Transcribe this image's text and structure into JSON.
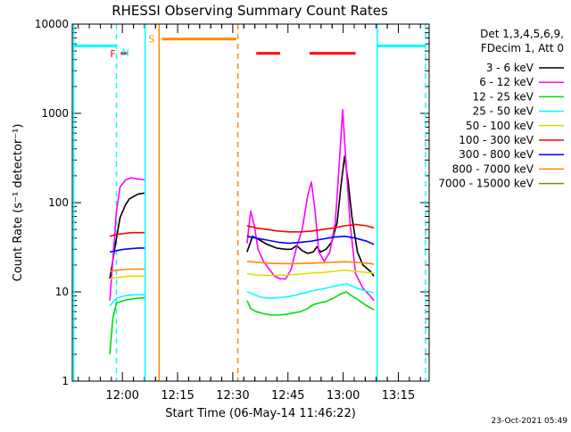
{
  "chart_data": {
    "type": "line",
    "title": "RHESSI Observing Summary Count Rates",
    "xlabel": "Start Time (06-May-14 11:46:22)",
    "ylabel": "Count Rate (s⁻¹ detector⁻¹)",
    "y_scale": "log",
    "ylim": [
      1,
      10000
    ],
    "xlim_minutes_after_start": [
      0,
      97
    ],
    "x_ticks": [
      {
        "label": "12:00",
        "min": 13.63
      },
      {
        "label": "12:15",
        "min": 28.63
      },
      {
        "label": "12:30",
        "min": 43.63
      },
      {
        "label": "12:45",
        "min": 58.63
      },
      {
        "label": "13:00",
        "min": 73.63
      },
      {
        "label": "13:15",
        "min": 88.63
      }
    ],
    "y_ticks": [
      {
        "label": "1",
        "v": 1
      },
      {
        "label": "10",
        "v": 10
      },
      {
        "label": "100",
        "v": 100
      },
      {
        "label": "1000",
        "v": 1000
      },
      {
        "label": "10000",
        "v": 10000
      }
    ],
    "legend": {
      "placement": "right",
      "header": [
        "Det 1,3,4,5,6,9,",
        "FDecim 1, Att 0"
      ],
      "entries": [
        {
          "label": "3 - 6 keV",
          "color": "#000000"
        },
        {
          "label": "6 - 12 keV",
          "color": "#ff00ff"
        },
        {
          "label": "12 - 25 keV",
          "color": "#00dd00"
        },
        {
          "label": "25 - 50 keV",
          "color": "#00ffff"
        },
        {
          "label": "50 - 100 keV",
          "color": "#dddd00"
        },
        {
          "label": "100 - 300 keV",
          "color": "#ff0000"
        },
        {
          "label": "300 - 800 keV",
          "color": "#0000ff"
        },
        {
          "label": "800 - 7000 keV",
          "color": "#ff8800"
        },
        {
          "label": "7000 - 15000 keV",
          "color": "#888800"
        }
      ]
    },
    "series": [
      {
        "name": "3 - 6 keV",
        "color": "#000000",
        "segments": [
          {
            "x": [
              10.2,
              12.0,
              13.0,
              14.5,
              15.5,
              16.8,
              18.0,
              19.6
            ],
            "y": [
              14,
              40,
              68,
              95,
              110,
              118,
              125,
              128
            ]
          },
          {
            "x": [
              47.5,
              49.0,
              51.0,
              53.0,
              55.5,
              58.0,
              59.5,
              61.0,
              62.5,
              64.0,
              65.5,
              66.5,
              67.5,
              69.0,
              70.5,
              72.0,
              73.0,
              74.0,
              75.0,
              76.0,
              77.5,
              79.0,
              81.0,
              82.0
            ],
            "y": [
              28,
              42,
              38,
              34,
              31,
              30,
              30,
              33,
              29,
              27,
              28,
              32,
              28,
              30,
              36,
              60,
              150,
              330,
              170,
              70,
              28,
              20,
              17,
              15
            ]
          }
        ]
      },
      {
        "name": "6 - 12 keV",
        "color": "#ff00ff",
        "segments": [
          {
            "x": [
              10.2,
              12.0,
              13.0,
              14.5,
              16.0,
              17.5,
              19.6
            ],
            "y": [
              8,
              80,
              150,
              180,
              190,
              185,
              180
            ]
          },
          {
            "x": [
              47.5,
              48.5,
              49.5,
              50.5,
              52.0,
              53.5,
              55.0,
              56.5,
              58.0,
              59.5,
              61.0,
              62.5,
              64.0,
              65.0,
              66.0,
              67.0,
              68.5,
              70.0,
              71.5,
              72.5,
              73.5,
              74.5,
              75.5,
              77.0,
              79.0,
              81.0,
              82.0
            ],
            "y": [
              35,
              80,
              55,
              30,
              22,
              18,
              15,
              14,
              14,
              18,
              32,
              50,
              120,
              170,
              80,
              28,
              22,
              28,
              60,
              250,
              1100,
              240,
              60,
              16,
              11,
              9,
              8
            ]
          }
        ]
      },
      {
        "name": "12 - 25 keV",
        "color": "#00dd00",
        "segments": [
          {
            "x": [
              10.2,
              11.0,
              12.0,
              14.0,
              16.0,
              18.0,
              19.6
            ],
            "y": [
              2,
              5,
              7.5,
              8,
              8.3,
              8.5,
              8.6
            ]
          },
          {
            "x": [
              47.5,
              48.5,
              50.0,
              52.0,
              54.0,
              56.0,
              58.0,
              60.0,
              62.0,
              64.0,
              65.5,
              67.0,
              69.0,
              71.0,
              73.0,
              74.5,
              76.0,
              78.0,
              80.0,
              82.0
            ],
            "y": [
              8,
              6.5,
              6,
              5.7,
              5.5,
              5.5,
              5.6,
              5.8,
              6.0,
              6.5,
              7.2,
              7.5,
              7.8,
              8.5,
              9.5,
              10.0,
              9.0,
              8.0,
              7.0,
              6.3
            ]
          }
        ]
      },
      {
        "name": "25 - 50 keV",
        "color": "#00ffff",
        "segments": [
          {
            "x": [
              10.2,
              12.0,
              14.0,
              16.0,
              18.0,
              19.6
            ],
            "y": [
              7,
              8.5,
              9,
              9.2,
              9.3,
              9.3
            ]
          },
          {
            "x": [
              47.5,
              49.0,
              51.0,
              53.0,
              55.0,
              57.0,
              59.0,
              61.0,
              63.0,
              65.0,
              67.0,
              69.0,
              71.0,
              73.0,
              74.5,
              76.0,
              78.0,
              80.0,
              82.0
            ],
            "y": [
              10,
              9.5,
              8.8,
              8.5,
              8.5,
              8.7,
              8.9,
              9.3,
              9.7,
              10.2,
              10.6,
              11.0,
              11.5,
              12.0,
              12.3,
              11.6,
              10.8,
              10.2,
              9.8
            ]
          }
        ]
      },
      {
        "name": "50 - 100 keV",
        "color": "#dddd00",
        "segments": [
          {
            "x": [
              10.2,
              12.0,
              14.0,
              16.0,
              18.0,
              19.6
            ],
            "y": [
              14,
              14.5,
              14.8,
              15,
              15,
              15
            ]
          },
          {
            "x": [
              47.5,
              50.0,
              53.0,
              56.0,
              59.0,
              62.0,
              65.0,
              68.0,
              71.0,
              74.0,
              77.0,
              80.0,
              82.0
            ],
            "y": [
              16,
              15.5,
              15.3,
              15.3,
              15.5,
              15.8,
              16.2,
              16.5,
              17.0,
              17.5,
              17.0,
              16.5,
              16.2
            ]
          }
        ]
      },
      {
        "name": "100 - 300 keV",
        "color": "#ff0000",
        "segments": [
          {
            "x": [
              10.2,
              12.0,
              14.0,
              16.0,
              18.0,
              19.6
            ],
            "y": [
              42,
              44,
              45,
              46,
              46,
              46
            ]
          },
          {
            "x": [
              47.5,
              50.0,
              53.0,
              56.0,
              59.0,
              62.0,
              65.0,
              68.0,
              71.0,
              74.0,
              77.0,
              80.0,
              82.0
            ],
            "y": [
              55,
              52,
              50,
              48,
              47,
              47,
              48,
              50,
              52,
              55,
              57,
              55,
              52
            ]
          }
        ]
      },
      {
        "name": "300 - 800 keV",
        "color": "#0000ff",
        "segments": [
          {
            "x": [
              10.2,
              12.0,
              14.0,
              16.0,
              18.0,
              19.6
            ],
            "y": [
              28,
              29,
              30,
              30.5,
              31,
              31
            ]
          },
          {
            "x": [
              47.5,
              50.0,
              53.0,
              56.0,
              59.0,
              62.0,
              65.0,
              68.0,
              71.0,
              74.0,
              77.0,
              80.0,
              82.0
            ],
            "y": [
              42,
              40,
              38,
              36,
              35,
              36,
              37,
              39,
              41,
              42,
              40,
              37,
              34
            ]
          }
        ]
      },
      {
        "name": "800 - 7000 keV",
        "color": "#ff8800",
        "segments": [
          {
            "x": [
              10.2,
              12.0,
              14.0,
              16.0,
              18.0,
              19.6
            ],
            "y": [
              17,
              17.5,
              17.8,
              18,
              18,
              18
            ]
          },
          {
            "x": [
              47.5,
              50.0,
              53.0,
              56.0,
              59.0,
              62.0,
              65.0,
              68.0,
              71.0,
              74.0,
              77.0,
              80.0,
              82.0
            ],
            "y": [
              22,
              21.5,
              21,
              20.8,
              20.7,
              20.8,
              21,
              21.2,
              21.5,
              21.8,
              21.5,
              21,
              20.5
            ]
          }
        ]
      },
      {
        "name": "7000 - 15000 keV",
        "color": "#888800",
        "segments": []
      }
    ],
    "flags": {
      "saa_lines": {
        "label": "S",
        "color": "#ff8800",
        "x_solid": [
          23.6
        ],
        "x_dashed": [
          45.0
        ],
        "bar": {
          "x": [
            24.4,
            44.6
          ],
          "y": 6800
        }
      },
      "night_lines": {
        "label": "N",
        "color": "#00ffff",
        "x_solid": [
          0.4,
          19.8,
          82.9
        ],
        "x_dashed": [
          12.0,
          96.0
        ],
        "bars": [
          {
            "x": [
              0.4,
              12.0
            ],
            "y": 5700
          },
          {
            "x": [
              82.9,
              96.0
            ],
            "y": 5700
          }
        ]
      },
      "flare_bars": {
        "label": "F",
        "color": "#ff0000",
        "bars": [
          {
            "x": [
              13.2,
              14.9
            ],
            "y": 4700
          },
          {
            "x": [
              50.0,
              56.5
            ],
            "y": 4700
          },
          {
            "x": [
              64.5,
              77.0
            ],
            "y": 4700
          }
        ]
      }
    }
  },
  "footer": {
    "timestamp": "23-Oct-2021 05:49"
  }
}
